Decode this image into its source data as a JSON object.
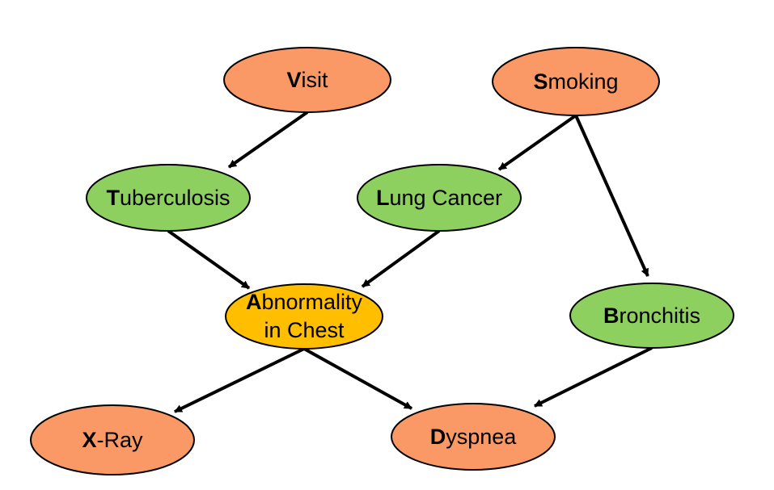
{
  "colors": {
    "orange": "#fa9966",
    "green": "#8ed060",
    "yellow": "#ffbf00",
    "stroke": "#000000",
    "edge": "#000000"
  },
  "nodes": {
    "visit": {
      "lead": "V",
      "rest": "isit",
      "color": "orange"
    },
    "smoking": {
      "lead": "S",
      "rest": "moking",
      "color": "orange"
    },
    "tuberculosis": {
      "lead": "T",
      "rest": "uberculosis",
      "color": "green"
    },
    "lung_cancer": {
      "lead": "L",
      "rest": "ung Cancer",
      "color": "green"
    },
    "abnormality": {
      "lead": "A",
      "rest": "bnormality",
      "line2": "in Chest",
      "color": "yellow"
    },
    "bronchitis": {
      "lead": "B",
      "rest": "ronchitis",
      "color": "green"
    },
    "xray": {
      "lead": "X",
      "rest": "-Ray",
      "color": "orange"
    },
    "dyspnea": {
      "lead": "D",
      "rest": "yspnea",
      "color": "orange"
    }
  },
  "edges": [
    {
      "from": "visit",
      "to": "tuberculosis"
    },
    {
      "from": "smoking",
      "to": "lung_cancer"
    },
    {
      "from": "smoking",
      "to": "bronchitis"
    },
    {
      "from": "tuberculosis",
      "to": "abnormality"
    },
    {
      "from": "lung_cancer",
      "to": "abnormality"
    },
    {
      "from": "abnormality",
      "to": "xray"
    },
    {
      "from": "abnormality",
      "to": "dyspnea"
    },
    {
      "from": "bronchitis",
      "to": "dyspnea"
    }
  ]
}
